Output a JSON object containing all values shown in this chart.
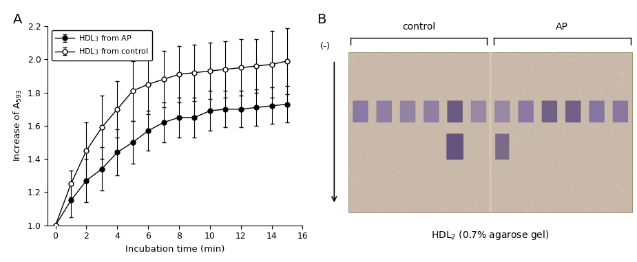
{
  "title_A": "A",
  "title_B": "B",
  "xlabel": "Incubation time (min)",
  "xlim": [
    -0.5,
    16
  ],
  "ylim": [
    1.0,
    2.2
  ],
  "xticks": [
    0,
    2,
    4,
    6,
    8,
    10,
    12,
    14,
    16
  ],
  "yticks": [
    1.0,
    1.2,
    1.4,
    1.6,
    1.8,
    2.0,
    2.2
  ],
  "legend_ap": "HDL$_3$ from AP",
  "legend_ctrl": "HDL$_3$ from control",
  "ap_x": [
    0,
    1,
    2,
    3,
    4,
    5,
    6,
    7,
    8,
    9,
    10,
    11,
    12,
    13,
    14,
    15
  ],
  "ap_y": [
    1.0,
    1.15,
    1.27,
    1.34,
    1.44,
    1.5,
    1.57,
    1.62,
    1.65,
    1.65,
    1.69,
    1.7,
    1.7,
    1.71,
    1.72,
    1.73
  ],
  "ap_yerr": [
    0.0,
    0.1,
    0.13,
    0.13,
    0.14,
    0.13,
    0.12,
    0.12,
    0.12,
    0.12,
    0.12,
    0.11,
    0.11,
    0.11,
    0.11,
    0.11
  ],
  "ctrl_x": [
    0,
    1,
    2,
    3,
    4,
    5,
    6,
    7,
    8,
    9,
    10,
    11,
    12,
    13,
    14,
    15
  ],
  "ctrl_y": [
    1.0,
    1.25,
    1.45,
    1.59,
    1.7,
    1.81,
    1.85,
    1.88,
    1.91,
    1.92,
    1.93,
    1.94,
    1.95,
    1.96,
    1.97,
    1.99
  ],
  "ctrl_yerr": [
    0.0,
    0.08,
    0.17,
    0.19,
    0.17,
    0.18,
    0.18,
    0.17,
    0.17,
    0.17,
    0.17,
    0.17,
    0.17,
    0.16,
    0.2,
    0.2
  ],
  "gel_bg_color": "#c9b9aa",
  "gel_label_control": "control",
  "gel_label_ap": "AP",
  "gel_caption": "HDL$_2$ (0.7% agarose gel)",
  "gel_minus_label": "(-)",
  "band_color_dark": "#5a4a7a",
  "band_color_mid": "#7060a0",
  "band_color_light": "#9080b8"
}
